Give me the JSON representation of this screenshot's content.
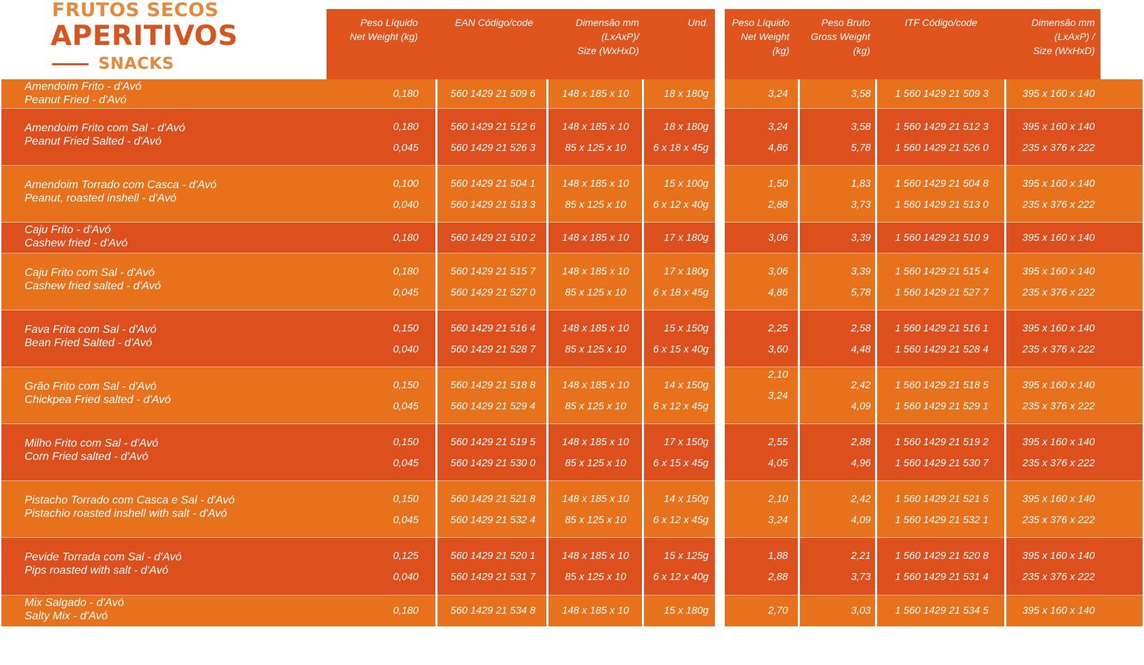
{
  "brand": {
    "line1": "FRUTOS SECOS",
    "line2": "APERITIVOS",
    "line3": "SNACKS"
  },
  "colors": {
    "header": "#e0541d",
    "row_light": "#e8721c",
    "row_dark": "#dd4f1c",
    "brand_light": "#e8883a",
    "brand_dark": "#d9551f"
  },
  "columns": {
    "net_weight": "Peso Líquido\nNet Weight (kg)",
    "ean": "EAN Código/code",
    "dimension_unit": "Dimensão mm\n(LxAxP)/\nSize (WxHxD)",
    "units": "Und.",
    "box_net_weight": "Peso Líquido\nNet Weight\n(kg)",
    "box_gross_weight": "Peso  Bruto\nGross Weight\n(kg)",
    "itf": "ITF Código/code",
    "box_dimension": "Dimensão mm\n(LxAxP) /\nSize (WxHxD)"
  },
  "rows": [
    {
      "name_pt": "Amendoim Frito - d'Avó",
      "name_en": "Peanut Fried - d'Avó",
      "net": [
        "0,180"
      ],
      "ean": [
        "560 1429 21 509 6"
      ],
      "dim": [
        "148 x 185 x 10"
      ],
      "und": [
        "18 x 180g"
      ],
      "bnet": [
        "3,24"
      ],
      "bgross": [
        "3,58"
      ],
      "itf": [
        "1 560 1429 21 509 3"
      ],
      "bdim": [
        "395 x 160 x 140"
      ]
    },
    {
      "name_pt": "Amendoim Frito com Sal - d'Avó",
      "name_en": "Peanut Fried Salted - d'Avó",
      "net": [
        "0,180",
        "0,045"
      ],
      "ean": [
        "560 1429 21 512 6",
        "560 1429 21 526 3"
      ],
      "dim": [
        "148 x 185 x 10",
        "85 x 125 x 10"
      ],
      "und": [
        "18 x 180g",
        "6 x 18 x 45g"
      ],
      "bnet": [
        "3,24",
        "4,86"
      ],
      "bgross": [
        "3,58",
        "5,78"
      ],
      "itf": [
        "1 560 1429 21 512 3",
        "1 560 1429 21 526 0"
      ],
      "bdim": [
        "395 x 160 x 140",
        "235 x 376 x 222"
      ]
    },
    {
      "name_pt": "Amendoim Torrado com Casca - d'Avó",
      "name_en": "Peanut, roasted inshell - d'Avó",
      "net": [
        "0,100",
        "0,040"
      ],
      "ean": [
        "560 1429 21 504 1",
        "560 1429 21 513 3"
      ],
      "dim": [
        "148 x 185 x 10",
        "85 x 125 x 10"
      ],
      "und": [
        "15 x 100g",
        "6 x 12 x 40g"
      ],
      "bnet": [
        "1,50",
        "2,88"
      ],
      "bgross": [
        "1,83",
        "3,73"
      ],
      "itf": [
        "1 560 1429 21 504 8",
        "1 560 1429 21 513 0"
      ],
      "bdim": [
        "395 x 160 x 140",
        "235 x 376 x 222"
      ]
    },
    {
      "name_pt": "Caju Frito - d'Avó",
      "name_en": "Cashew fried - d'Avó",
      "net": [
        "0,180"
      ],
      "ean": [
        "560 1429 21 510 2"
      ],
      "dim": [
        "148 x 185 x 10"
      ],
      "und": [
        "17 x 180g"
      ],
      "bnet": [
        "3,06"
      ],
      "bgross": [
        "3,39"
      ],
      "itf": [
        "1 560 1429 21 510 9"
      ],
      "bdim": [
        "395 x 160 x 140"
      ]
    },
    {
      "name_pt": "Caju Frito com Sal - d'Avó",
      "name_en": "Cashew fried salted - d'Avó",
      "net": [
        "0,180",
        "0,045"
      ],
      "ean": [
        "560 1429 21 515 7",
        "560 1429 21 527 0"
      ],
      "dim": [
        "148 x 185 x 10",
        "85 x 125 x 10"
      ],
      "und": [
        "17 x 180g",
        "6 x 18 x 45g"
      ],
      "bnet": [
        "3,06",
        "4,86"
      ],
      "bgross": [
        "3,39",
        "5,78"
      ],
      "itf": [
        "1 560 1429 21 515 4",
        "1 560 1429 21 527 7"
      ],
      "bdim": [
        "395 x 160 x 140",
        "235 x 376 x 222"
      ]
    },
    {
      "name_pt": "Fava Frita com Sal - d'Avó",
      "name_en": "Bean Fried Salted - d'Avó",
      "net": [
        "0,150",
        "0,040"
      ],
      "ean": [
        "560 1429 21 516 4",
        "560 1429 21 528 7"
      ],
      "dim": [
        "148 x 185 x 10",
        "85 x 125 x 10"
      ],
      "und": [
        "15 x 150g",
        "6 x 15 x 40g"
      ],
      "bnet": [
        "2,25",
        "3,60"
      ],
      "bgross": [
        "2,58",
        "4,48"
      ],
      "itf": [
        "1 560 1429 21 516 1",
        "1 560 1429 21 528 4"
      ],
      "bdim": [
        "395 x 160 x 140",
        "235 x 376 x 222"
      ]
    },
    {
      "name_pt": "Grão Frito com Sal - d'Avó",
      "name_en": "Chickpea Fried salted - d'Avó",
      "net": [
        "0,150",
        "0,045"
      ],
      "ean": [
        "560 1429 21 518 8",
        "560 1429 21 529 4"
      ],
      "dim": [
        "148 x 185 x 10",
        "85 x 125 x 10"
      ],
      "und": [
        "14 x 150g",
        "6 x 12 x 45g"
      ],
      "bnet": [
        "2,10",
        "3,24"
      ],
      "bgross": [
        "2,42",
        "4,09"
      ],
      "itf": [
        "1 560 1429 21 518 5",
        "1 560 1429 21 529 1"
      ],
      "bdim": [
        "395 x 160 x 140",
        "235 x 376 x 222"
      ]
    },
    {
      "name_pt": "Milho Frito com Sal - d'Avó",
      "name_en": "Corn Fried salted - d'Avó",
      "net": [
        "0,150",
        "0,045"
      ],
      "ean": [
        "560 1429 21 519 5",
        "560 1429 21 530 0"
      ],
      "dim": [
        "148 x 185 x 10",
        "85 x 125 x 10"
      ],
      "und": [
        "17 x 150g",
        "6 x 15 x 45g"
      ],
      "bnet": [
        "2,55",
        "4,05"
      ],
      "bgross": [
        "2,88",
        "4,96"
      ],
      "itf": [
        "1 560 1429 21 519 2",
        "1 560 1429 21 530 7"
      ],
      "bdim": [
        "395 x 160 x 140",
        "235 x 376 x 222"
      ]
    },
    {
      "name_pt": "Pistacho Torrado com Casca e Sal - d'Avó",
      "name_en": "Pistachio roasted inshell with salt - d'Avó",
      "net": [
        "0,150",
        "0,045"
      ],
      "ean": [
        "560 1429 21 521 8",
        "560 1429 21 532 4"
      ],
      "dim": [
        "148 x 185 x 10",
        "85 x 125 x 10"
      ],
      "und": [
        "14 x 150g",
        "6 x 12 x 45g"
      ],
      "bnet": [
        "2,10",
        "3,24"
      ],
      "bgross": [
        "2,42",
        "4,09"
      ],
      "itf": [
        "1 560 1429 21 521 5",
        "1 560 1429 21 532 1"
      ],
      "bdim": [
        "395 x 160 x 140",
        "235 x 376 x 222"
      ]
    },
    {
      "name_pt": "Pevide Torrada com Sal - d'Avó",
      "name_en": "Pips roasted with salt - d'Avó",
      "net": [
        "0,125",
        "0,040"
      ],
      "ean": [
        "560 1429 21 520 1",
        "560 1429 21 531 7"
      ],
      "dim": [
        "148 x 185 x 10",
        "85 x 125 x 10"
      ],
      "und": [
        "15 x 125g",
        "6 x 12 x 40g"
      ],
      "bnet": [
        "1,88",
        "2,88"
      ],
      "bgross": [
        "2,21",
        "3,73"
      ],
      "itf": [
        "1 560 1429 21 520 8",
        "1 560 1429 21 531 4"
      ],
      "bdim": [
        "395 x 160 x 140",
        "235 x 376 x 222"
      ]
    },
    {
      "name_pt": "Mix Salgado - d'Avó",
      "name_en": "Salty Mix - d'Avó",
      "net": [
        "0,180"
      ],
      "ean": [
        "560 1429 21 534 8"
      ],
      "dim": [
        "148 x 185 x 10"
      ],
      "und": [
        "15 x 180g"
      ],
      "bnet": [
        "2,70"
      ],
      "bgross": [
        "3,03"
      ],
      "itf": [
        "1 560 1429 21 534 5"
      ],
      "bdim": [
        "395 x 160 x 140"
      ]
    }
  ]
}
